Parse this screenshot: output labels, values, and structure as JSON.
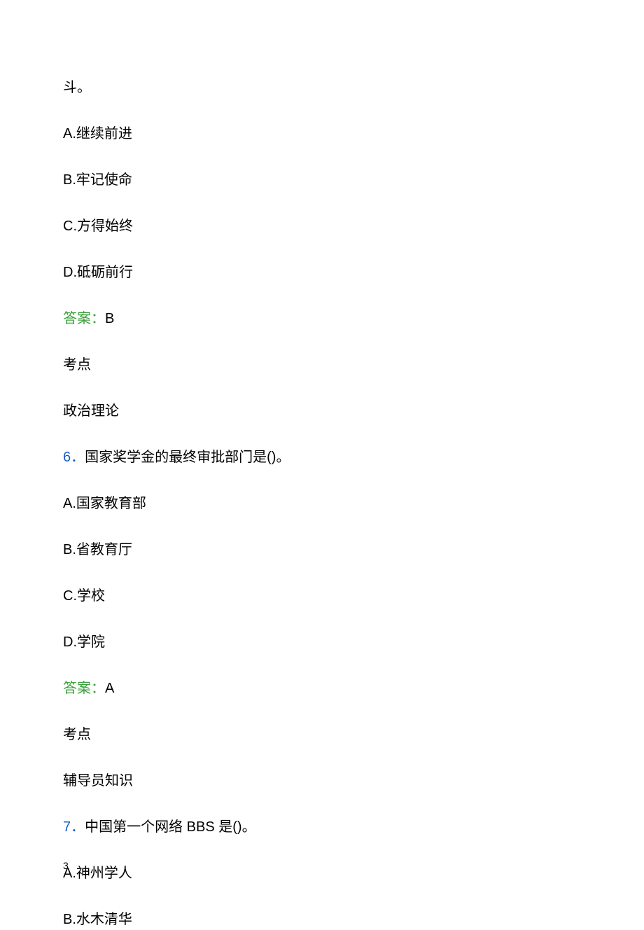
{
  "colors": {
    "text": "#000000",
    "answer_label": "#3ca03c",
    "question_number": "#1a5ec4",
    "background": "#ffffff"
  },
  "typography": {
    "body_fontsize": 20,
    "pagenum_fontsize": 14,
    "line_spacing": 36,
    "font_family": "Microsoft YaHei"
  },
  "q5": {
    "stem_tail": "斗。",
    "options": {
      "A": "A.继续前进",
      "B": "B.牢记使命",
      "C": "C.方得始终",
      "D": "D.砥砺前行"
    },
    "answer_label": "答案：",
    "answer_value": "B",
    "kaodian_label": "考点",
    "kaodian_value": "政治理论"
  },
  "q6": {
    "number": "6．",
    "stem": "国家奖学金的最终审批部门是()。",
    "options": {
      "A": "A.国家教育部",
      "B": "B.省教育厅",
      "C": "C.学校",
      "D": "D.学院"
    },
    "answer_label": "答案：",
    "answer_value": "A",
    "kaodian_label": "考点",
    "kaodian_value": "辅导员知识"
  },
  "q7": {
    "number": "7．",
    "stem": "中国第一个网络 BBS 是()。",
    "options": {
      "A": "A.神州学人",
      "B": "B.水木清华"
    }
  },
  "page_number": "3"
}
